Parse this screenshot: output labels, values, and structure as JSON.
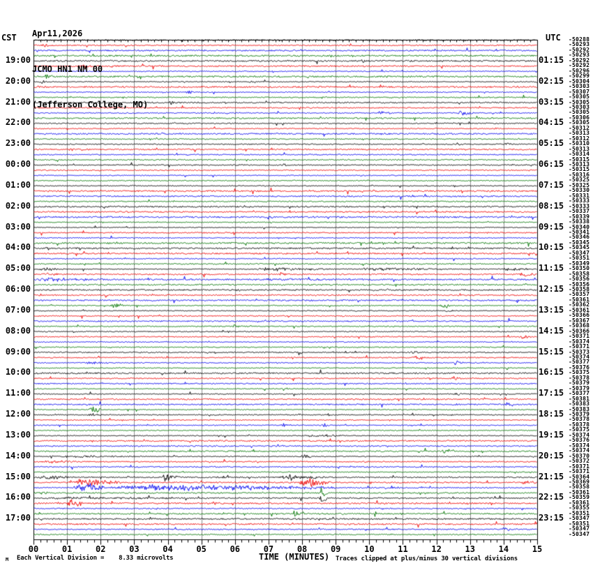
{
  "header": {
    "date": "Apr11,2026",
    "station": "JCMO HN1 NM 00",
    "location": "(Jefferson College, MO)"
  },
  "axes": {
    "left_label": "CST",
    "right_label": "UTC",
    "x_title": "TIME (MINUTES)",
    "minute_labels": [
      "00",
      "01",
      "02",
      "03",
      "04",
      "05",
      "06",
      "07",
      "08",
      "09",
      "10",
      "11",
      "12",
      "13",
      "14",
      "15"
    ]
  },
  "footer": {
    "watermark": "M",
    "division_note": "Each Vertical Division =    8.33 microvolts",
    "clip_note": "Traces clipped at plus/minus 30 vertical divisions"
  },
  "chart_data": {
    "type": "line",
    "subtype": "helicorder",
    "x_range_minutes": [
      0,
      15
    ],
    "minutes_per_line": 15,
    "rows_per_hour": 4,
    "row_count": 96,
    "first_labeled_row": 5,
    "label_row_step": 4,
    "color_cycle": [
      "#000000",
      "#ee0000",
      "#0000ee",
      "#007400"
    ],
    "grid_color": "#8c8c8c",
    "frame_color": "#000000",
    "cst_hour_labels": [
      "19:00",
      "20:00",
      "21:00",
      "22:00",
      "23:00",
      "00:00",
      "01:00",
      "02:00",
      "03:00",
      "04:00",
      "05:00",
      "06:00",
      "07:00",
      "08:00",
      "09:00",
      "10:00",
      "11:00",
      "12:00",
      "13:00",
      "14:00",
      "15:00",
      "16:00",
      "17:00"
    ],
    "utc_hour_labels": [
      "01:15",
      "02:15",
      "03:15",
      "04:15",
      "05:15",
      "06:15",
      "07:15",
      "08:15",
      "09:15",
      "10:15",
      "11:15",
      "12:15",
      "13:15",
      "14:15",
      "15:15",
      "16:15",
      "17:15",
      "18:15",
      "19:15",
      "20:15",
      "21:15",
      "22:15",
      "23:15"
    ],
    "trace_offsets": [
      -50288,
      -50293,
      -50292,
      -50293,
      -50292,
      -50292,
      -50296,
      -50299,
      -50304,
      -50303,
      -50307,
      -50305,
      -50305,
      -50303,
      -50305,
      -50306,
      -50305,
      -50312,
      -50313,
      -50312,
      -50310,
      -50313,
      -50314,
      -50315,
      -50313,
      -50315,
      -50316,
      -50325,
      -50325,
      -50330,
      -50331,
      -50333,
      -50333,
      -50337,
      -50339,
      -50338,
      -50340,
      -50341,
      -50346,
      -50345,
      -50345,
      -50347,
      -50351,
      -50349,
      -50350,
      -50358,
      -50356,
      -50356,
      -50358,
      -50357,
      -50361,
      -50362,
      -50361,
      -50366,
      -50367,
      -50368,
      -50366,
      -50371,
      -50374,
      -50371,
      -50373,
      -50374,
      -50377,
      -50376,
      -50375,
      -50378,
      -50379,
      -50379,
      -50377,
      -50381,
      -50383,
      -50383,
      -50379,
      -50378,
      -50378,
      -50375,
      -50374,
      -50376,
      -50374,
      -50374,
      -50370,
      -50372,
      -50371,
      -50371,
      -50364,
      -50369,
      -50358,
      -50361,
      -50359,
      -50361,
      -50355,
      -50351,
      -50347,
      -50351,
      -50347,
      -50347
    ],
    "events": [
      {
        "row": 2,
        "start_min": 0.2,
        "end_min": 0.6,
        "amp": 3
      },
      {
        "row": 3,
        "start_min": 5.0,
        "end_min": 5.3,
        "amp": 2.5
      },
      {
        "row": 5,
        "start_min": 9.7,
        "end_min": 10.1,
        "amp": 3
      },
      {
        "row": 6,
        "start_min": 1.4,
        "end_min": 1.8,
        "amp": 3.5
      },
      {
        "row": 8,
        "start_min": 0.3,
        "end_min": 0.55,
        "amp": 7
      },
      {
        "row": 9,
        "start_min": 0.15,
        "end_min": 0.5,
        "amp": 3.5
      },
      {
        "row": 9,
        "start_min": 6.4,
        "end_min": 6.7,
        "amp": 3
      },
      {
        "row": 11,
        "start_min": 4.5,
        "end_min": 4.8,
        "amp": 3
      },
      {
        "row": 13,
        "start_min": 4.0,
        "end_min": 4.35,
        "amp": 4
      },
      {
        "row": 15,
        "start_min": 10.2,
        "end_min": 10.65,
        "amp": 4.5
      },
      {
        "row": 15,
        "start_min": 12.6,
        "end_min": 13.15,
        "amp": 4.5
      },
      {
        "row": 19,
        "start_min": 10.3,
        "end_min": 10.6,
        "amp": 3
      },
      {
        "row": 21,
        "start_min": 14.0,
        "end_min": 14.3,
        "amp": 3.5
      },
      {
        "row": 25,
        "start_min": 7.4,
        "end_min": 7.65,
        "amp": 3
      },
      {
        "row": 33,
        "start_min": 6.3,
        "end_min": 6.6,
        "amp": 2.5
      },
      {
        "row": 41,
        "start_min": 12.4,
        "end_min": 12.7,
        "amp": 3
      },
      {
        "row": 45,
        "start_min": 0.1,
        "end_min": 0.9,
        "amp": 3
      },
      {
        "row": 45,
        "start_min": 6.5,
        "end_min": 9.0,
        "amp": 3.2
      },
      {
        "row": 45,
        "start_min": 9.6,
        "end_min": 12.5,
        "amp": 2.8
      },
      {
        "row": 45,
        "start_min": 13.9,
        "end_min": 14.9,
        "amp": 2.5
      },
      {
        "row": 46,
        "start_min": 0.2,
        "end_min": 0.8,
        "amp": 4.5
      },
      {
        "row": 46,
        "start_min": 7.3,
        "end_min": 7.5,
        "amp": 5
      },
      {
        "row": 46,
        "start_min": 14.4,
        "end_min": 15.0,
        "amp": 3.5
      },
      {
        "row": 47,
        "start_min": 0.0,
        "end_min": 2.2,
        "amp": 3.5
      },
      {
        "row": 47,
        "start_min": 5.5,
        "end_min": 12.5,
        "amp": 1.8
      },
      {
        "row": 49,
        "start_min": 6.0,
        "end_min": 6.3,
        "amp": 2.5
      },
      {
        "row": 52,
        "start_min": 2.3,
        "end_min": 2.65,
        "amp": 6
      },
      {
        "row": 52,
        "start_min": 12.1,
        "end_min": 12.45,
        "amp": 5
      },
      {
        "row": 53,
        "start_min": 12.2,
        "end_min": 12.5,
        "amp": 3
      },
      {
        "row": 56,
        "start_min": 5.9,
        "end_min": 6.2,
        "amp": 3
      },
      {
        "row": 58,
        "start_min": 14.4,
        "end_min": 14.8,
        "amp": 3.5
      },
      {
        "row": 61,
        "start_min": 11.2,
        "end_min": 11.5,
        "amp": 3
      },
      {
        "row": 62,
        "start_min": 11.3,
        "end_min": 11.65,
        "amp": 5
      },
      {
        "row": 63,
        "start_min": 1.5,
        "end_min": 2.2,
        "amp": 3
      },
      {
        "row": 63,
        "start_min": 12.5,
        "end_min": 12.8,
        "amp": 4
      },
      {
        "row": 66,
        "start_min": 12.4,
        "end_min": 12.75,
        "amp": 4
      },
      {
        "row": 69,
        "start_min": 12.5,
        "end_min": 12.8,
        "amp": 3
      },
      {
        "row": 71,
        "start_min": 14.05,
        "end_min": 14.3,
        "amp": 7
      },
      {
        "row": 72,
        "start_min": 1.65,
        "end_min": 2.0,
        "amp": 8
      },
      {
        "row": 73,
        "start_min": 1.6,
        "end_min": 2.0,
        "amp": 3
      },
      {
        "row": 75,
        "start_min": 7.3,
        "end_min": 7.65,
        "amp": 4
      },
      {
        "row": 75,
        "start_min": 8.55,
        "end_min": 8.8,
        "amp": 5
      },
      {
        "row": 77,
        "start_min": 8.2,
        "end_min": 9.3,
        "amp": 3
      },
      {
        "row": 80,
        "start_min": 12.1,
        "end_min": 12.55,
        "amp": 5
      },
      {
        "row": 81,
        "start_min": 0.2,
        "end_min": 3.5,
        "amp": 2.2
      },
      {
        "row": 81,
        "start_min": 7.9,
        "end_min": 8.3,
        "amp": 4
      },
      {
        "row": 82,
        "start_min": 0.1,
        "end_min": 1.3,
        "amp": 3
      },
      {
        "row": 85,
        "start_min": 0.1,
        "end_min": 1.1,
        "amp": 4
      },
      {
        "row": 85,
        "start_min": 3.8,
        "end_min": 4.35,
        "amp": 6
      },
      {
        "row": 85,
        "start_min": 5.6,
        "end_min": 5.85,
        "amp": 4
      },
      {
        "row": 85,
        "start_min": 7.3,
        "end_min": 8.7,
        "amp": 5
      },
      {
        "row": 86,
        "start_min": 1.0,
        "end_min": 2.6,
        "amp": 6
      },
      {
        "row": 86,
        "start_min": 7.9,
        "end_min": 8.85,
        "amp": 8
      },
      {
        "row": 86,
        "start_min": 14.5,
        "end_min": 15.0,
        "amp": 4
      },
      {
        "row": 87,
        "start_min": 1.2,
        "end_min": 2.1,
        "amp": 9
      },
      {
        "row": 87,
        "start_min": 2.1,
        "end_min": 9.0,
        "amp": 5.5
      },
      {
        "row": 87,
        "start_min": 10.4,
        "end_min": 11.0,
        "amp": 4
      },
      {
        "row": 88,
        "start_min": 0.2,
        "end_min": 0.5,
        "amp": 4
      },
      {
        "row": 88,
        "start_min": 8.5,
        "end_min": 8.75,
        "amp": 12
      },
      {
        "row": 89,
        "start_min": 0.1,
        "end_min": 5.0,
        "amp": 2.4
      },
      {
        "row": 89,
        "start_min": 8.5,
        "end_min": 8.75,
        "amp": 10
      },
      {
        "row": 90,
        "start_min": 1.0,
        "end_min": 1.45,
        "amp": 8
      },
      {
        "row": 90,
        "start_min": 5.3,
        "end_min": 5.65,
        "amp": 4
      },
      {
        "row": 92,
        "start_min": 7.7,
        "end_min": 8.05,
        "amp": 7
      },
      {
        "row": 93,
        "start_min": 7.7,
        "end_min": 8.0,
        "amp": 3
      },
      {
        "row": 95,
        "start_min": 13.9,
        "end_min": 14.2,
        "amp": 5
      }
    ]
  }
}
